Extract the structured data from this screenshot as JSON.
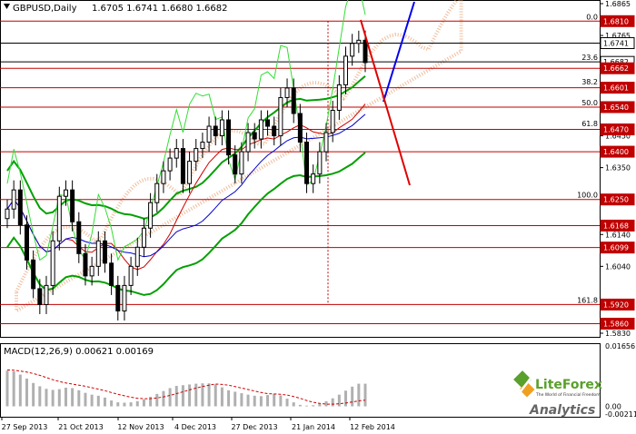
{
  "chart_data": [
    {
      "type": "candlestick",
      "title": "GBPUSD,Daily",
      "ohlc": {
        "open": 1.6705,
        "high": 1.6741,
        "low": 1.668,
        "close": 1.6682
      },
      "ohlc_text": "1.6705 1.6741 1.6680 1.6682",
      "ylim": [
        1.58,
        1.6865
      ],
      "y_ticks": [
        "1.6865",
        "1.6765",
        "1.6655",
        "1.6545",
        "1.6450",
        "1.6350",
        "1.6240",
        "1.6140",
        "1.6040",
        "1.5920",
        "1.5830"
      ],
      "x_ticks": [
        "27 Sep 2013",
        "21 Oct 2013",
        "12 Nov 2013",
        "4 Dec 2013",
        "27 Dec 2013",
        "21 Jan 2014",
        "12 Feb 2014"
      ],
      "price_labels": [
        {
          "text": "1.6810",
          "value": 1.681,
          "color": "#c00000"
        },
        {
          "text": "1.6741",
          "value": 1.6741,
          "color": "#000000"
        },
        {
          "text": "1.6682",
          "value": 1.6682,
          "color": "#000000"
        },
        {
          "text": "1.6662",
          "value": 1.6662,
          "color": "#c00000"
        },
        {
          "text": "1.6601",
          "value": 1.6601,
          "color": "#c00000"
        },
        {
          "text": "1.6540",
          "value": 1.654,
          "color": "#c00000"
        },
        {
          "text": "1.6470",
          "value": 1.647,
          "color": "#c00000"
        },
        {
          "text": "1.6400",
          "value": 1.64,
          "color": "#c00000"
        },
        {
          "text": "1.6250",
          "value": 1.625,
          "color": "#c00000"
        },
        {
          "text": "1.6168",
          "value": 1.6168,
          "color": "#c00000"
        },
        {
          "text": "1.6099",
          "value": 1.6099,
          "color": "#c00000"
        },
        {
          "text": "1.5920",
          "value": 1.592,
          "color": "#c00000"
        },
        {
          "text": "1.5860",
          "value": 1.586,
          "color": "#c00000"
        }
      ],
      "fibonacci_levels": [
        {
          "label": "0.0",
          "value": 1.681
        },
        {
          "label": "23.6",
          "value": 1.6683
        },
        {
          "label": "38.2",
          "value": 1.6605
        },
        {
          "label": "50.0",
          "value": 1.654
        },
        {
          "label": "61.8",
          "value": 1.6475
        },
        {
          "label": "100.0",
          "value": 1.625
        },
        {
          "label": "161.8",
          "value": 1.592
        }
      ],
      "close_series": [
        1.622,
        1.628,
        1.617,
        1.606,
        1.597,
        1.592,
        1.598,
        1.612,
        1.626,
        1.628,
        1.618,
        1.608,
        1.601,
        1.604,
        1.612,
        1.605,
        1.598,
        1.59,
        1.598,
        1.604,
        1.61,
        1.616,
        1.624,
        1.63,
        1.634,
        1.638,
        1.641,
        1.63,
        1.637,
        1.641,
        1.643,
        1.648,
        1.645,
        1.65,
        1.639,
        1.633,
        1.64,
        1.646,
        1.644,
        1.65,
        1.648,
        1.645,
        1.657,
        1.66,
        1.652,
        1.643,
        1.63,
        1.633,
        1.64,
        1.646,
        1.653,
        1.661,
        1.67,
        1.674,
        1.675,
        1.668
      ],
      "colors": {
        "bull": "#ffffff",
        "bear": "#000000",
        "level": "#c00000",
        "blue_line": "#0000ff",
        "green": "#00a000"
      }
    },
    {
      "type": "bar",
      "title": "MACD(12,26,9) 0.00621 0.00169",
      "ylim": [
        -0.00211,
        0.01656
      ],
      "y_ticks": [
        "0.01656",
        "0.00",
        "-0.00211"
      ],
      "histogram": [
        0.0098,
        0.0096,
        0.0087,
        0.0076,
        0.0064,
        0.0055,
        0.0048,
        0.0045,
        0.0047,
        0.0051,
        0.005,
        0.0044,
        0.0037,
        0.0032,
        0.0029,
        0.0024,
        0.0016,
        0.0011,
        0.001,
        0.0011,
        0.0014,
        0.0019,
        0.0026,
        0.0034,
        0.0042,
        0.005,
        0.0056,
        0.0058,
        0.006,
        0.0062,
        0.0063,
        0.0063,
        0.006,
        0.0052,
        0.0044,
        0.004,
        0.0036,
        0.0032,
        0.0029,
        0.0028,
        0.0031,
        0.0034,
        0.003,
        0.0021,
        0.0011,
        0.0004,
        0.0002,
        0.0003,
        0.0007,
        0.0014,
        0.0022,
        0.0032,
        0.0043,
        0.0054,
        0.0062,
        0.0062
      ],
      "signal": [
        0.01,
        0.0099,
        0.0097,
        0.0094,
        0.009,
        0.0085,
        0.0079,
        0.0073,
        0.0068,
        0.0064,
        0.0061,
        0.0058,
        0.0055,
        0.0051,
        0.0047,
        0.0043,
        0.0038,
        0.0033,
        0.0029,
        0.0025,
        0.0022,
        0.0021,
        0.0021,
        0.0023,
        0.0026,
        0.003,
        0.0035,
        0.004,
        0.0045,
        0.005,
        0.0054,
        0.0058,
        0.0061,
        0.006,
        0.0058,
        0.0054,
        0.005,
        0.0046,
        0.0042,
        0.0038,
        0.0035,
        0.0034,
        0.0033,
        0.0031,
        0.0027,
        0.0022,
        0.0016,
        0.0011,
        0.0008,
        0.0006,
        0.0006,
        0.0007,
        0.0009,
        0.0012,
        0.0015,
        0.0017
      ]
    }
  ],
  "logo": {
    "brand": "LiteForex",
    "tagline": "The World of Financial Freedom",
    "sub": "Analytics"
  }
}
